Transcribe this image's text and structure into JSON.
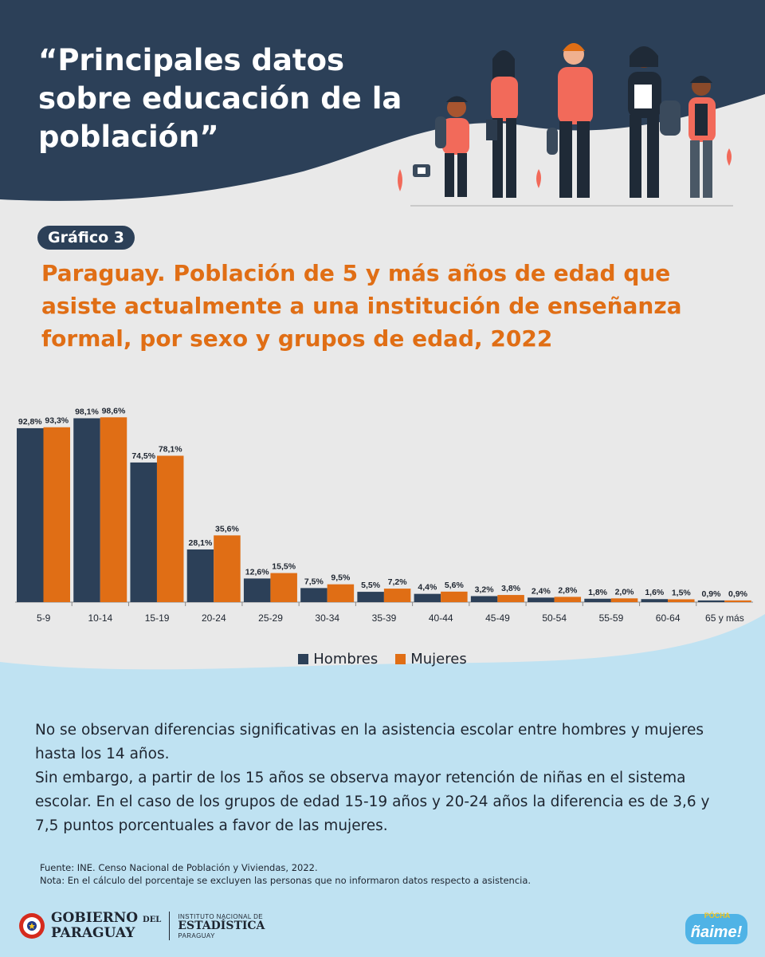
{
  "headline": "“Principales datos sobre educación de la población”",
  "badge": "Gráfico 3",
  "chart_title": "Paraguay. Población de 5 y más años de edad que asiste actualmente a una institución de enseñanza formal, por sexo y grupos de edad, 2022",
  "chart_data": {
    "type": "bar",
    "categories": [
      "5-9",
      "10-14",
      "15-19",
      "20-24",
      "25-29",
      "30-34",
      "35-39",
      "40-44",
      "45-49",
      "50-54",
      "55-59",
      "60-64",
      "65 y más"
    ],
    "series": [
      {
        "name": "Hombres",
        "color": "#2c4058",
        "values": [
          92.8,
          98.1,
          74.5,
          28.1,
          12.6,
          7.5,
          5.5,
          4.4,
          3.2,
          2.4,
          1.8,
          1.6,
          0.9
        ],
        "labels": [
          "92,8%",
          "98,1%",
          "74,5%",
          "28,1%",
          "12,6%",
          "7,5%",
          "5,5%",
          "4,4%",
          "3,2%",
          "2,4%",
          "1,8%",
          "1,6%",
          "0,9%"
        ]
      },
      {
        "name": "Mujeres",
        "color": "#e06e15",
        "values": [
          93.3,
          98.6,
          78.1,
          35.6,
          15.5,
          9.5,
          7.2,
          5.6,
          3.8,
          2.8,
          2.0,
          1.5,
          0.9
        ],
        "labels": [
          "93,3%",
          "98,6%",
          "78,1%",
          "35,6%",
          "15,5%",
          "9,5%",
          "7,2%",
          "5,6%",
          "3,8%",
          "2,8%",
          "2,0%",
          "1,5%",
          "0,9%"
        ]
      }
    ],
    "ylim": [
      0,
      100
    ],
    "legend": "bottom-center",
    "grid": false
  },
  "paragraphs": [
    "No se observan diferencias significativas en la asistencia escolar entre hombres y mujeres hasta los 14 años.",
    "Sin embargo, a partir de los 15 años se observa mayor retención de niñas en el sistema escolar. En el caso de los grupos de edad 15-19 años y 20-24 años la diferencia es de 3,6 y 7,5 puntos porcentuales a favor de las mujeres."
  ],
  "notes": {
    "source": "Fuente: INE. Censo Nacional de Población y Viviendas, 2022.",
    "note": "Nota: En el cálculo del porcentaje se excluyen las personas que no informaron datos respecto a asistencia."
  },
  "logos": {
    "gov_line1": "GOBIERNO",
    "gov_del": "DEL",
    "gov_line2": "PARAGUAY",
    "ine_line1": "INSTITUTO NACIONAL DE",
    "ine_line2": "ESTADÍSTICA",
    "ine_line3": "PARAGUAY",
    "naime_small": "PÓCHA",
    "naime_big": "ñaime!"
  },
  "colors": {
    "navy": "#2c4058",
    "orange": "#e06e15",
    "light_blue": "#bfe2f2",
    "background": "#e9e9e9",
    "coral": "#f26a5a"
  }
}
